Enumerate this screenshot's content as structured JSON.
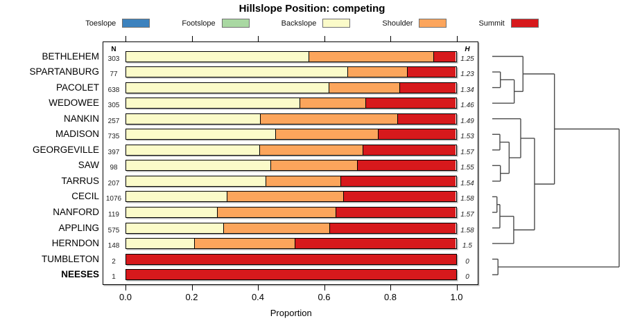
{
  "title": "Hillslope Position: competing",
  "axis": {
    "xlabel": "Proportion",
    "ticks": [
      "0.0",
      "0.2",
      "0.4",
      "0.6",
      "0.8",
      "1.0"
    ],
    "n_header": "N",
    "h_header": "H"
  },
  "chart_data": {
    "type": "bar",
    "stacked": true,
    "orientation": "horizontal",
    "title": "Hillslope Position: competing",
    "xlabel": "Proportion",
    "xlim": [
      0,
      1
    ],
    "grid": false,
    "legend_position": "top",
    "categories": [
      "BETHLEHEM",
      "SPARTANBURG",
      "PACOLET",
      "WEDOWEE",
      "NANKIN",
      "MADISON",
      "GEORGEVILLE",
      "SAW",
      "TARRUS",
      "CECIL",
      "NANFORD",
      "APPLING",
      "HERNDON",
      "TUMBLETON",
      "NEESES"
    ],
    "bold_categories": [
      "NEESES"
    ],
    "n_values": [
      303,
      77,
      638,
      305,
      257,
      735,
      397,
      98,
      207,
      1076,
      119,
      575,
      148,
      2,
      1
    ],
    "h_values": [
      "1.25",
      "1.23",
      "1.34",
      "1.46",
      "1.49",
      "1.53",
      "1.57",
      "1.55",
      "1.54",
      "1.58",
      "1.57",
      "1.58",
      "1.5",
      "0",
      "0"
    ],
    "series": [
      {
        "name": "Toeslope",
        "color": "#3C82BE",
        "values": [
          0,
          0,
          0,
          0,
          0,
          0,
          0,
          0,
          0,
          0,
          0,
          0,
          0,
          0,
          0
        ]
      },
      {
        "name": "Footslope",
        "color": "#A9D8A2",
        "values": [
          0,
          0,
          0,
          0,
          0,
          0,
          0,
          0,
          0,
          0,
          0,
          0,
          0,
          0,
          0
        ]
      },
      {
        "name": "Backslope",
        "color": "#FBFBC9",
        "values": [
          0.553,
          0.671,
          0.615,
          0.525,
          0.405,
          0.452,
          0.403,
          0.437,
          0.423,
          0.305,
          0.275,
          0.294,
          0.207,
          0,
          0
        ]
      },
      {
        "name": "Shoulder",
        "color": "#FCA55C",
        "values": [
          0.379,
          0.181,
          0.213,
          0.2,
          0.418,
          0.312,
          0.315,
          0.264,
          0.226,
          0.354,
          0.36,
          0.323,
          0.304,
          0,
          0
        ]
      },
      {
        "name": "Summit",
        "color": "#D7191C",
        "values": [
          0.068,
          0.148,
          0.172,
          0.275,
          0.177,
          0.236,
          0.282,
          0.299,
          0.351,
          0.341,
          0.365,
          0.383,
          0.489,
          1.0,
          1.0
        ]
      }
    ],
    "dendrogram": {
      "height": 1.0,
      "children": [
        {
          "height": 0.49,
          "children": [
            {
              "height": 0.242,
              "children": [
                {
                  "leaf": 0
                },
                {
                  "height": 0.173,
                  "children": [
                    {
                      "height": 0.064,
                      "children": [
                        {
                          "leaf": 1
                        },
                        {
                          "leaf": 2
                        }
                      ]
                    },
                    {
                      "leaf": 3
                    }
                  ]
                }
              ]
            },
            {
              "height": 0.333,
              "children": [
                {
                  "height": 0.224,
                  "children": [
                    {
                      "leaf": 4
                    },
                    {
                      "height": 0.133,
                      "children": [
                        {
                          "height": 0.06,
                          "children": [
                            {
                              "leaf": 5
                            },
                            {
                              "leaf": 6
                            }
                          ]
                        },
                        {
                          "height": 0.064,
                          "children": [
                            {
                              "leaf": 7
                            },
                            {
                              "leaf": 8
                            }
                          ]
                        }
                      ]
                    }
                  ]
                },
                {
                  "height": 0.169,
                  "children": [
                    {
                      "height": 0.06,
                      "children": [
                        {
                          "height": 0.037,
                          "children": [
                            {
                              "leaf": 9
                            },
                            {
                              "leaf": 10
                            }
                          ]
                        },
                        {
                          "leaf": 11
                        }
                      ]
                    },
                    {
                      "leaf": 12
                    }
                  ]
                }
              ]
            }
          ]
        },
        {
          "height": 0.045,
          "children": [
            {
              "leaf": 13
            },
            {
              "leaf": 14
            }
          ]
        }
      ]
    }
  }
}
